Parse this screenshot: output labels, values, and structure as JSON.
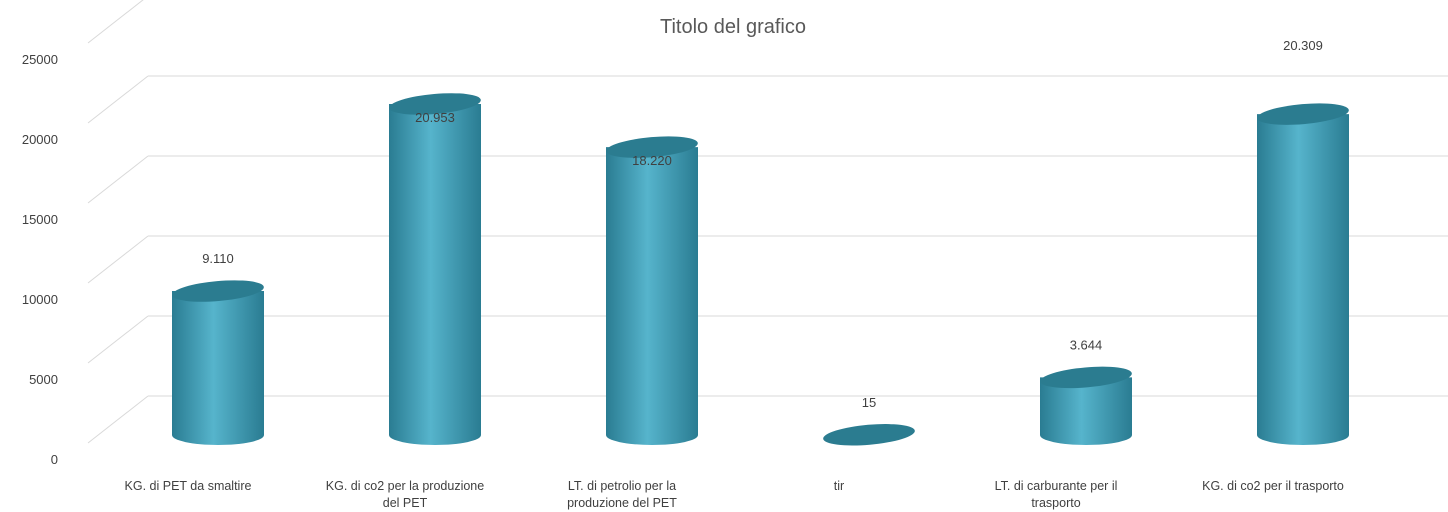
{
  "chart_data": {
    "type": "bar",
    "style": "3d-cylinder",
    "title": "Titolo del grafico",
    "xlabel": "",
    "ylabel": "",
    "ylim": [
      0,
      25000
    ],
    "yticks": [
      "0",
      "5000",
      "10000",
      "15000",
      "20000",
      "25000"
    ],
    "grid": true,
    "legend": "none",
    "categories": [
      [
        "KG. di PET da smaltire"
      ],
      [
        "KG. di co2  per la produzione",
        "del PET"
      ],
      [
        "LT.  di petrolio per la",
        "produzione del PET"
      ],
      [
        "tir"
      ],
      [
        "LT. di carburante per il",
        "trasporto"
      ],
      [
        "KG. di co2 per il trasporto"
      ]
    ],
    "values": [
      9110,
      20953,
      18220,
      15,
      3644,
      20309
    ],
    "data_labels": [
      "9.110",
      "20.953",
      "18.220",
      "15",
      "3.644",
      "20.309"
    ],
    "colors": {
      "bar_body": "#3f9db5",
      "bar_highlight": "#56b4cc",
      "bar_shadow": "#2a7c92",
      "bar_top": "#2b7c90",
      "grid": "#d9d9d9",
      "text": "#404040"
    }
  }
}
